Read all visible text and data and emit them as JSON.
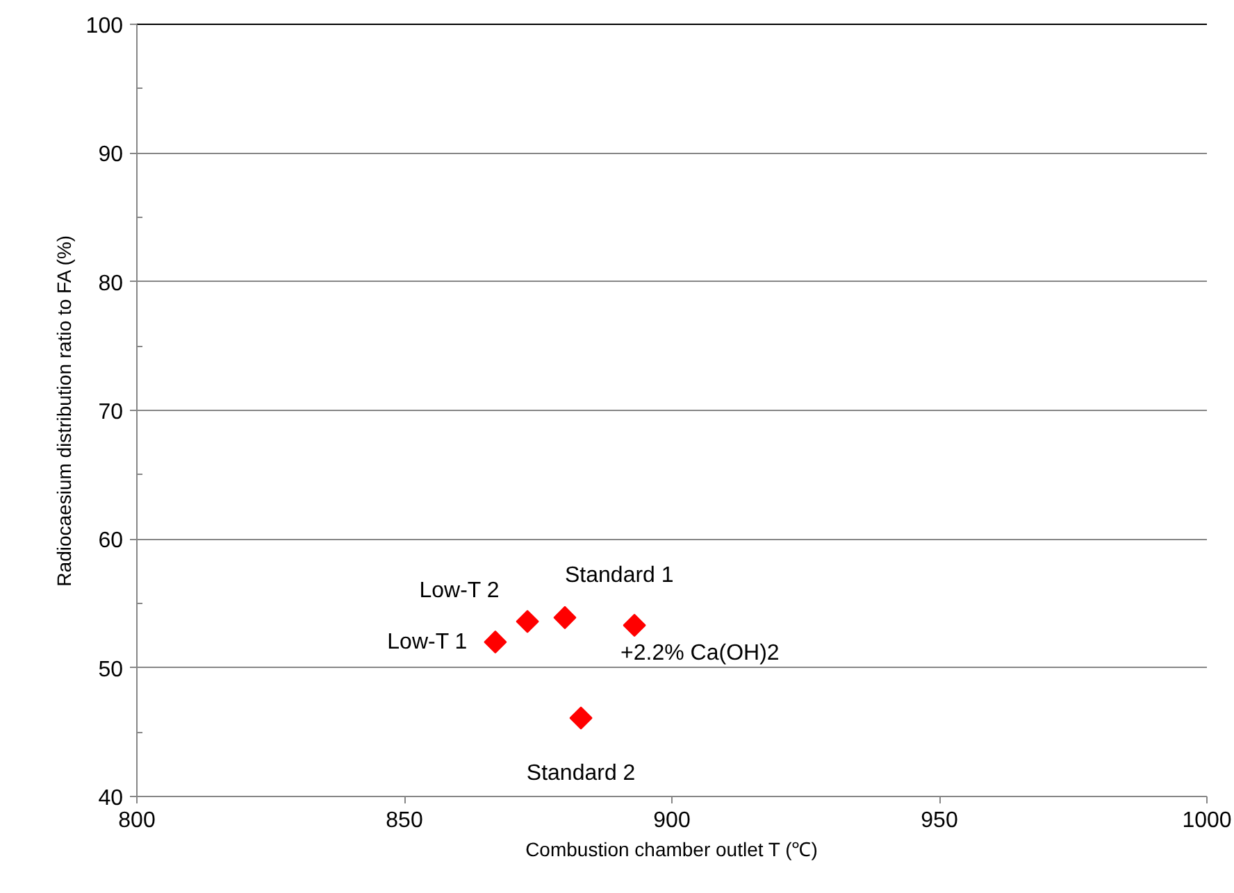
{
  "chart_data": {
    "type": "scatter",
    "xlabel": "Combustion chamber outlet T (℃)",
    "ylabel": "Radiocaesium distribution ratio to FA (%)",
    "x": [
      867,
      873,
      880,
      893,
      883
    ],
    "series": [
      {
        "color": "#ff0000",
        "values": [
          52.0,
          53.6,
          53.9,
          53.3,
          46.1
        ]
      }
    ],
    "marker": "diamond",
    "xlim": [
      800,
      1000
    ],
    "xticks": [
      800,
      850,
      900,
      950,
      1000
    ],
    "ylim": [
      40,
      100
    ],
    "yticks": [
      40,
      50,
      60,
      70,
      80,
      90,
      100
    ],
    "grid": "y",
    "annotations": [
      {
        "text": "Low-T 1",
        "x": 867,
        "y": 52.0
      },
      {
        "text": "Low-T 2",
        "x": 873,
        "y": 53.6
      },
      {
        "text": "Standard 1",
        "x": 880,
        "y": 53.9
      },
      {
        "text": "+2.2% Ca(OH)2",
        "x": 893,
        "y": 53.3
      },
      {
        "text": "Standard 2",
        "x": 883,
        "y": 46.1
      }
    ]
  }
}
